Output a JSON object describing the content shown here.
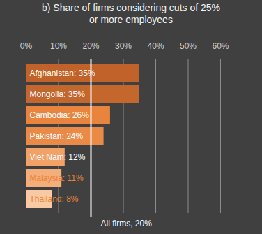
{
  "chart_data": {
    "type": "bar",
    "orientation": "horizontal",
    "title": "b) Share of firms considering cuts of 25% or more employees",
    "categories": [
      "Afghanistan",
      "Mongolia",
      "Cambodia",
      "Pakistan",
      "Viet Nam",
      "Malaysia",
      "Thailand"
    ],
    "values": [
      35,
      35,
      26,
      24,
      12,
      11,
      8
    ],
    "value_labels": [
      "Afghanistan: 35%",
      "Mongolia: 35%",
      "Cambodia: 26%",
      "Pakistan: 24%",
      "Viet Nam: 12%",
      "Malaysia: 11%",
      "Thailand: 8%"
    ],
    "data_labels": true,
    "colors": [
      "#c0622a",
      "#c4672c",
      "#e8843e",
      "#ea8a47",
      "#f2a267",
      "#f4ae7a",
      "#f8c9a3"
    ],
    "xlim": [
      0,
      60
    ],
    "xticks": [
      {
        "value": 0,
        "label": "0%"
      },
      {
        "value": 10,
        "label": "10%"
      },
      {
        "value": 20,
        "label": "20%"
      },
      {
        "value": 30,
        "label": "30%"
      },
      {
        "value": 40,
        "label": "40%"
      },
      {
        "value": 50,
        "label": "50%"
      },
      {
        "value": 60,
        "label": "60%"
      }
    ],
    "grid": true,
    "tick_labels": "x",
    "annotations": [
      {
        "x": 20,
        "text": "All firms, 20%"
      }
    ]
  }
}
